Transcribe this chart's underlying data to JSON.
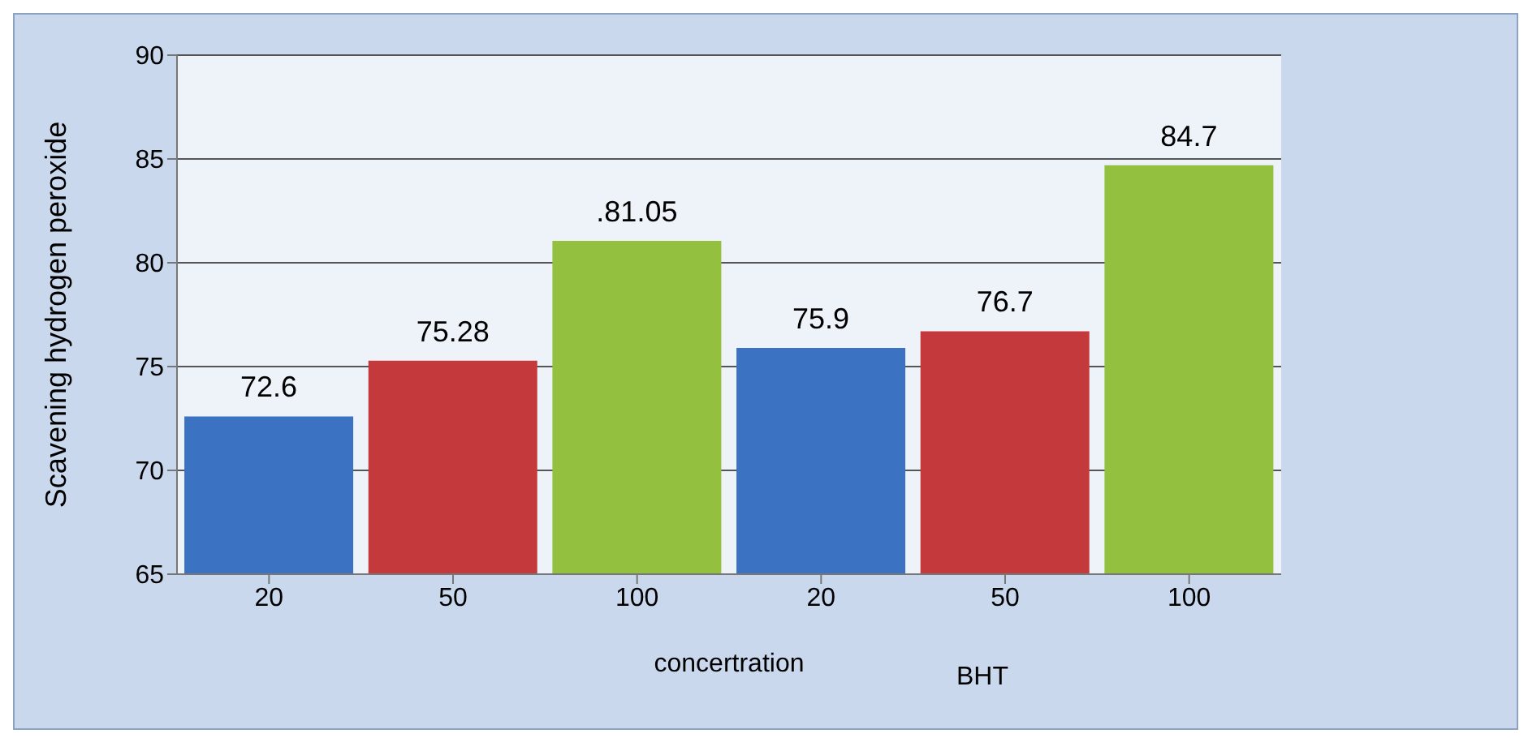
{
  "chart_data": {
    "type": "bar",
    "ylabel": "Scavening hydrogen  peroxide",
    "xlabel": "concertration",
    "categories": [
      "20",
      "50",
      "100",
      "20",
      "50",
      "100"
    ],
    "values": [
      72.6,
      75.28,
      81.05,
      75.9,
      76.7,
      84.7
    ],
    "colors": [
      "#3b73c2",
      "#c4393c",
      "#93c03e",
      "#3b73c2",
      "#c4393c",
      "#93c03e"
    ],
    "value_labels": [
      "72.6",
      "75.28",
      ".81.05",
      "75.9",
      "76.7",
      "84.7"
    ],
    "annotations": [
      "BHT"
    ],
    "ylim": [
      65,
      90
    ],
    "yticks": [
      65,
      70,
      75,
      80,
      85,
      90
    ],
    "grid": "y"
  }
}
